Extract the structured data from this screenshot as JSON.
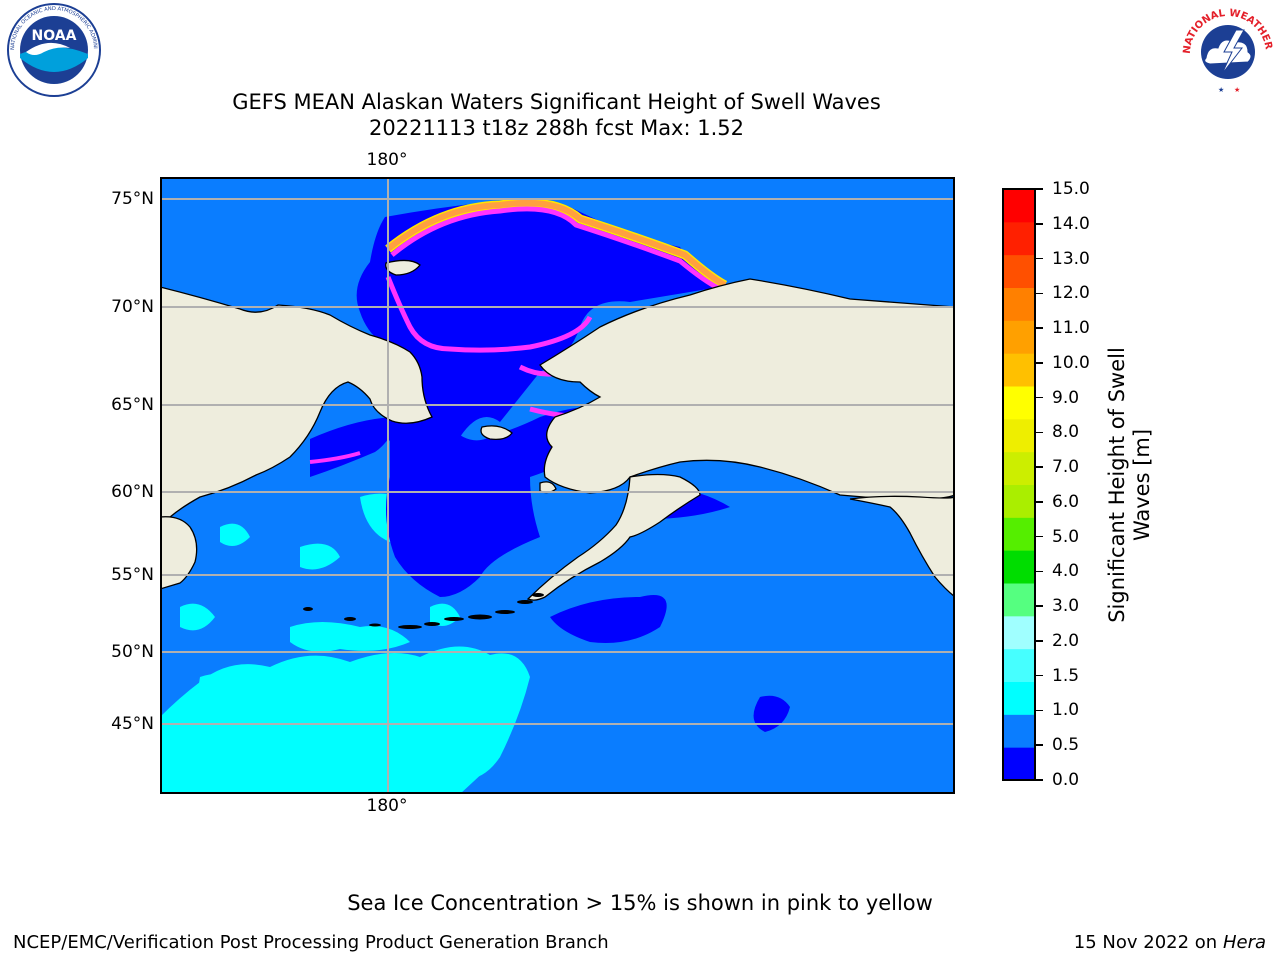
{
  "header": {
    "title_line1": "GEFS MEAN Alaskan Waters Significant Height of Swell Waves",
    "title_line2": "20221113 t18z 288h fcst   Max: 1.52"
  },
  "logos": {
    "left": {
      "name": "NOAA",
      "ring_text": "NATIONAL OCEANIC AND ATMOSPHERIC ADMINISTRATION · U.S. DEPARTMENT OF COMMERCE",
      "colors": {
        "ring": "#ffffff",
        "sky": "#1c3f94",
        "gull": "#ffffff",
        "sea": "#00a0dc"
      }
    },
    "right": {
      "name": "NATIONAL WEATHER SERVICE",
      "colors": {
        "text": "#e4202a",
        "cloud": "#ffffff",
        "sky": "#1c3f94",
        "bolt": "#ffffff"
      }
    }
  },
  "map": {
    "lat_labels": [
      "75°N",
      "70°N",
      "65°N",
      "60°N",
      "55°N",
      "50°N",
      "45°N"
    ],
    "lon_label_top": "180°",
    "lon_label_bottom": "180°",
    "colors": {
      "land": "#eeeddd",
      "ocean_low": "#0000ff",
      "ocean_mid": "#0a7dff",
      "ocean_high": "#00ffff",
      "grid": "#b0b0b0",
      "coast": "#000000",
      "ice_pink": "#ff33ff",
      "ice_orange": "#ffa040",
      "ice_yellow": "#ffe600"
    }
  },
  "colorbar": {
    "label_line1": "Significant Height of Swell",
    "label_line2": "Waves [m]",
    "ticks": [
      "15.0",
      "14.0",
      "13.0",
      "12.0",
      "11.0",
      "10.0",
      "9.0",
      "8.0",
      "7.0",
      "6.0",
      "5.0",
      "4.0",
      "3.0",
      "2.0",
      "1.5",
      "1.0",
      "0.5",
      "0.0"
    ],
    "bin_colors": [
      "#0000ff",
      "#0a7dff",
      "#00ffff",
      "#46ffff",
      "#a0ffff",
      "#55ff80",
      "#00dd00",
      "#55ee00",
      "#aaee00",
      "#ccee00",
      "#eeee00",
      "#ffff00",
      "#ffc000",
      "#ffa000",
      "#ff8000",
      "#ff5000",
      "#ff2000",
      "#ff0000"
    ]
  },
  "footer": {
    "note": "Sea Ice Concentration > 15% is shown in pink to yellow",
    "org": "NCEP/EMC/Verification Post Processing Product Generation Branch",
    "date": "15 Nov 2022 on",
    "machine": "Hera"
  }
}
